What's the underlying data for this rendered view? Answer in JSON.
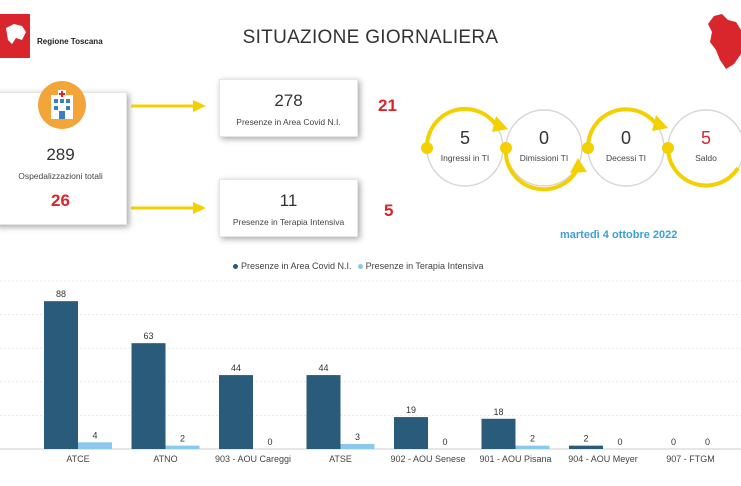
{
  "header": {
    "org_name": "Regione Toscana",
    "title": "SITUAZIONE GIORNALIERA"
  },
  "hospital": {
    "total_value": "289",
    "total_label": "Ospedalizzazioni totali",
    "delta": "26"
  },
  "covid_area": {
    "value": "278",
    "label": "Presenze in Area Covid N.I.",
    "delta": "21"
  },
  "intensive": {
    "value": "11",
    "label": "Presenze in Terapia Intensiva",
    "delta": "5"
  },
  "flow": [
    {
      "value": "5",
      "label": "Ingressi in TI"
    },
    {
      "value": "0",
      "label": "Dimissioni TI"
    },
    {
      "value": "0",
      "label": "Decessi TI"
    },
    {
      "value": "5",
      "label": "Saldo"
    }
  ],
  "date": "martedì 4 ottobre 2022",
  "colors": {
    "accent_red": "#d8262c",
    "arrow_yellow": "#f5d000",
    "series_dark": "#2a5b7a",
    "series_light": "#8cc8ee",
    "date_blue": "#3aa0d8"
  },
  "chart_data": {
    "type": "bar",
    "categories": [
      "ATCE",
      "ATNO",
      "903 - AOU Careggi",
      "ATSE",
      "902 - AOU Senese",
      "901 - AOU Pisana",
      "904 - AOU Meyer",
      "907 - FTGM"
    ],
    "series": [
      {
        "name": "Presenze in Area Covid N.I.",
        "values": [
          88,
          63,
          44,
          44,
          19,
          18,
          2,
          0
        ]
      },
      {
        "name": "Presenze in Terapia Intensiva",
        "values": [
          4,
          2,
          0,
          3,
          0,
          2,
          0,
          0
        ]
      }
    ],
    "ylim": [
      0,
      100
    ],
    "grid": true,
    "legend": "top-center",
    "data_labels": true
  }
}
